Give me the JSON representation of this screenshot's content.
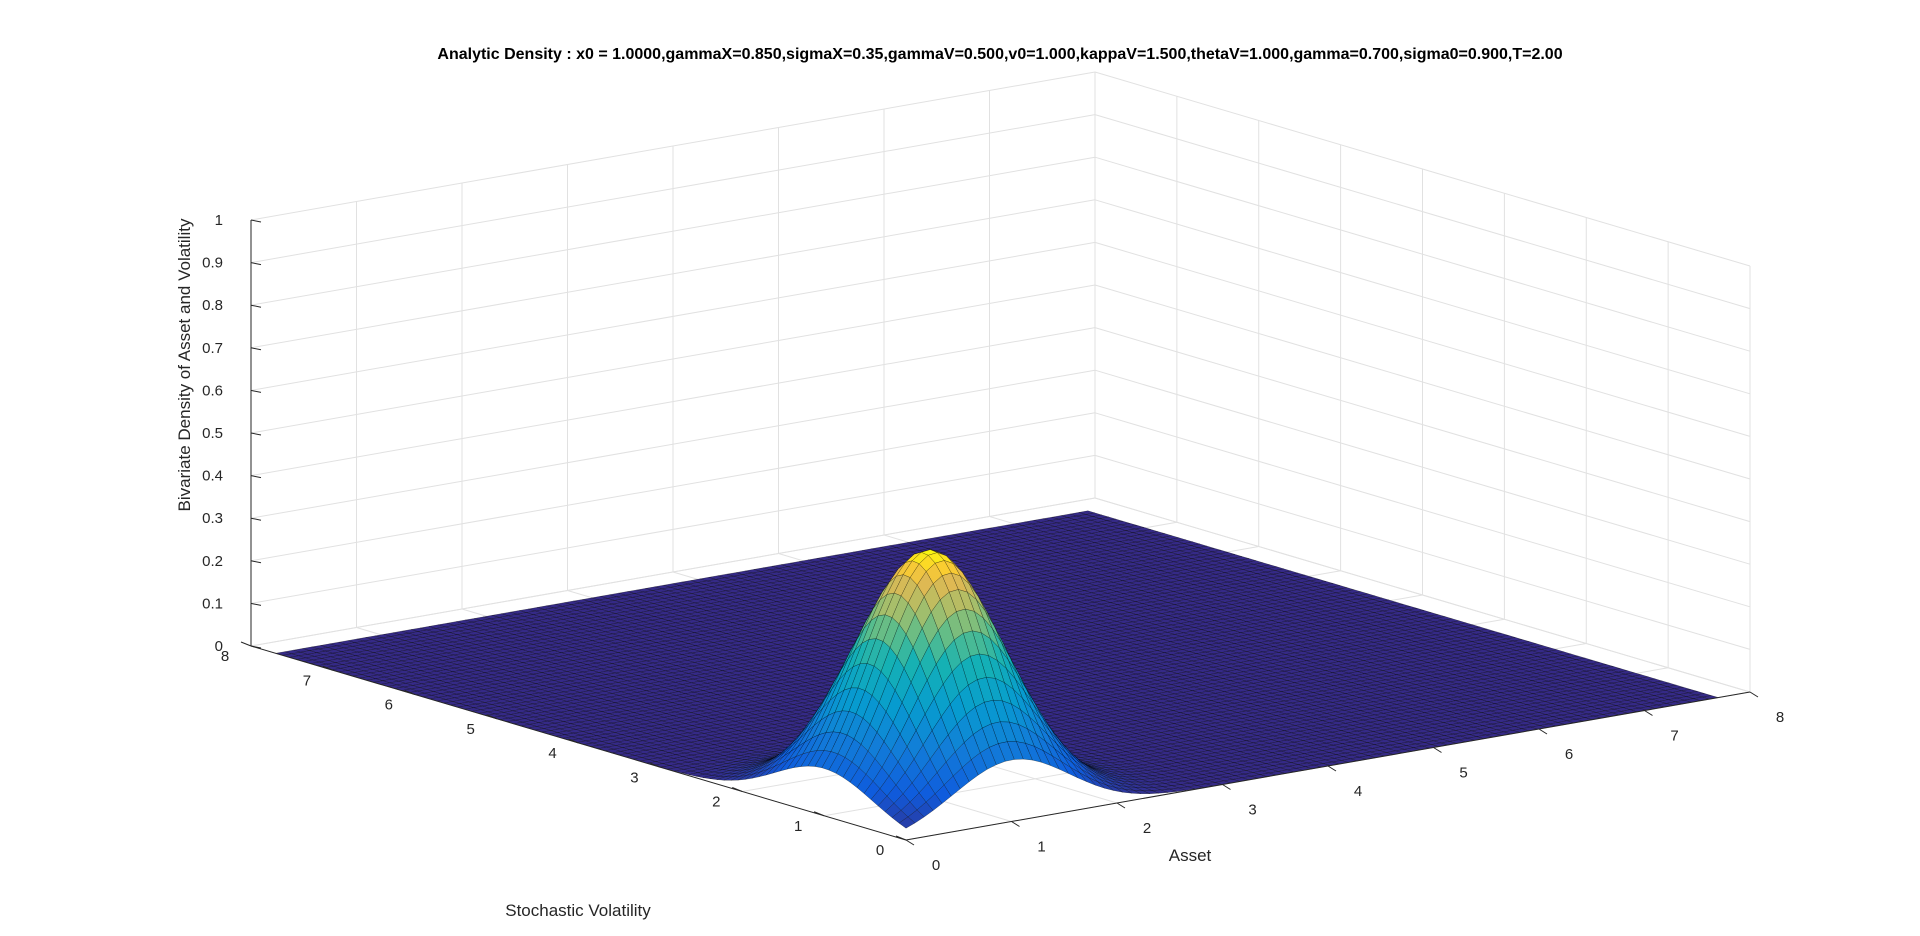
{
  "chart_data": {
    "type": "surface",
    "title": "Analytic Density : x0 = 1.0000,gammaX=0.850,sigmaX=0.35,gammaV=0.500,v0=1.000,kappaV=1.500,thetaV=1.000,gamma=0.700,sigma0=0.900,T=2.00",
    "xlabel": "Asset",
    "ylabel": "Stochastic Volatility",
    "zlabel": "Bivariate Density of Asset and Volatility",
    "xlim": [
      0,
      8
    ],
    "ylim": [
      0,
      8
    ],
    "zlim": [
      0,
      1
    ],
    "x_ticks": [
      "0",
      "1",
      "2",
      "3",
      "4",
      "5",
      "6",
      "7",
      "8"
    ],
    "y_ticks": [
      "0",
      "1",
      "2",
      "3",
      "4",
      "5",
      "6",
      "7",
      "8"
    ],
    "z_ticks": [
      "0",
      "0.1",
      "0.2",
      "0.3",
      "0.4",
      "0.5",
      "0.6",
      "0.7",
      "0.8",
      "0.9",
      "1"
    ],
    "surface_domain": {
      "x": [
        0,
        7.7
      ],
      "y": [
        0,
        7.7
      ]
    },
    "peak": {
      "x": 1.0,
      "y": 1.0,
      "z": 0.58
    },
    "spread": {
      "x": 0.55,
      "y": 0.6
    },
    "grid": true,
    "colormap": "parula",
    "colors": {
      "low": "#352a87",
      "mid_low": "#1f74dc",
      "mid": "#15b1b4",
      "mid_high": "#a5be6b",
      "high": "#f9fb0e",
      "edge": "#000000",
      "gridline": "#e1e1e1",
      "axis": "#262626"
    }
  }
}
